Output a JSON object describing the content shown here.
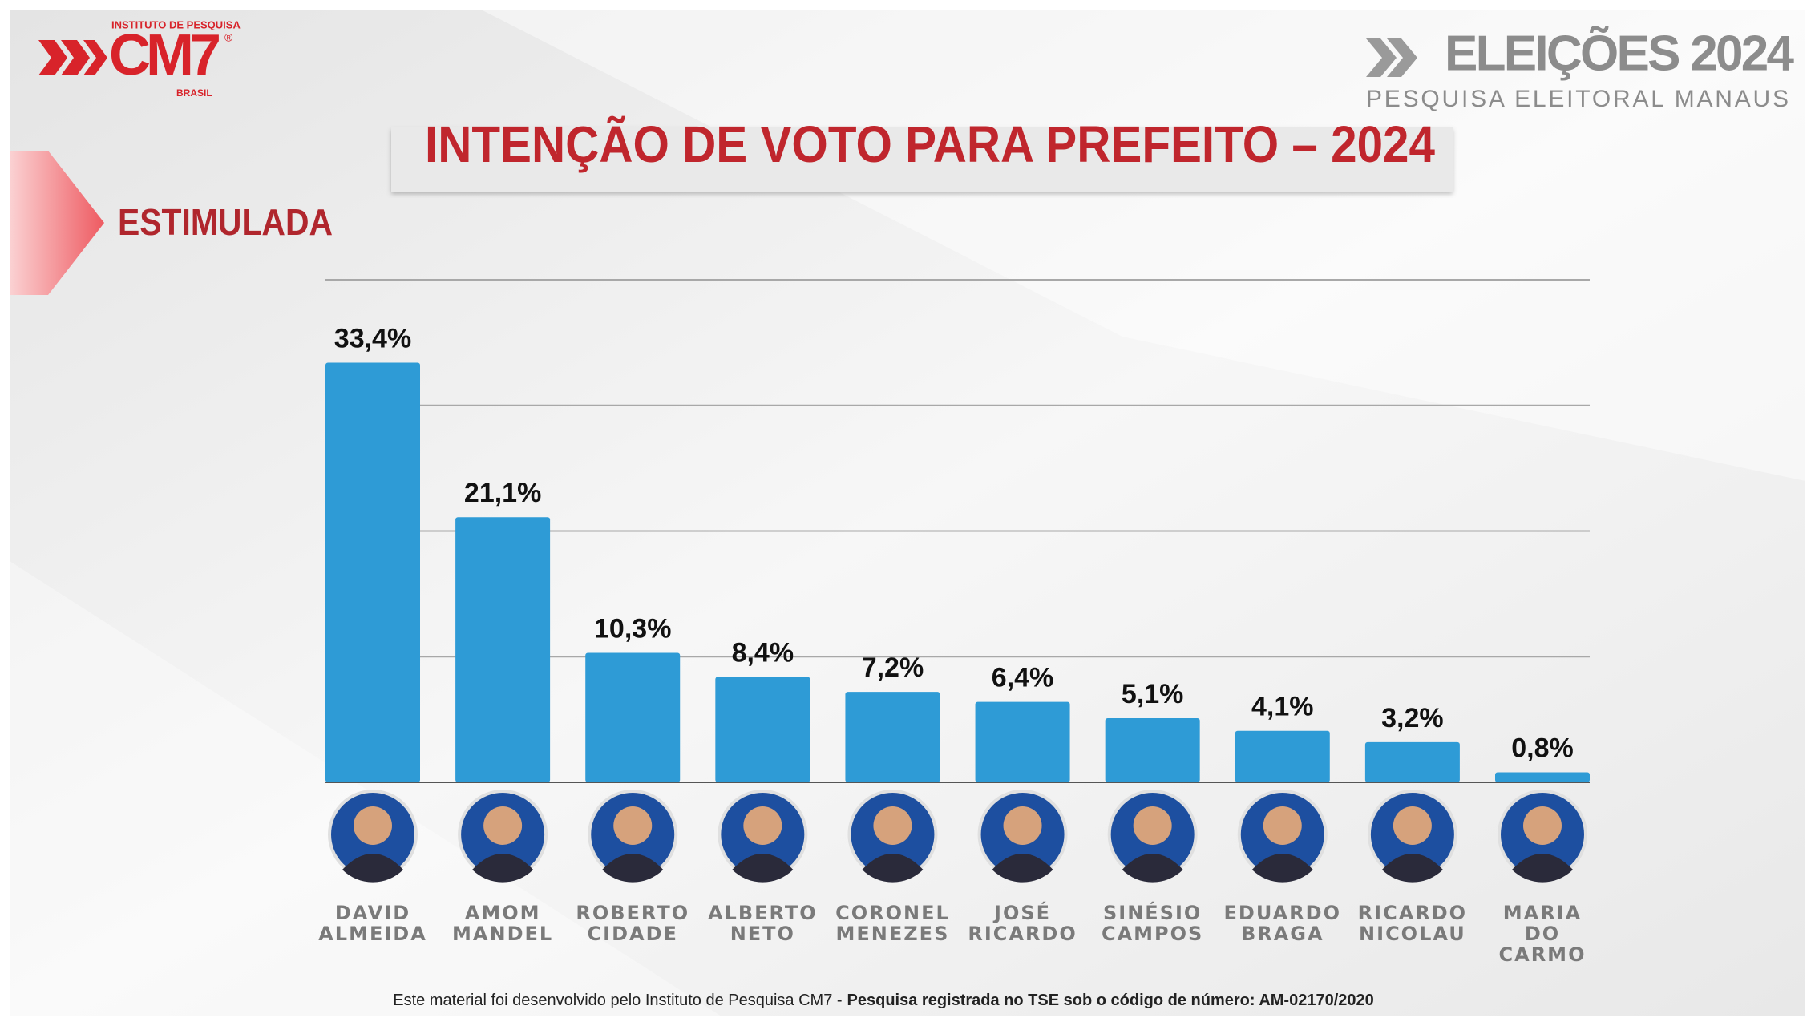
{
  "page": {
    "logo": {
      "top": "INSTITUTO DE PESQUISA",
      "brand": "CM7",
      "mark": "®",
      "bottom": "BRASIL"
    },
    "event": {
      "title": "ELEIÇÕES 2024",
      "subtitle": "PESQUISA ELEITORAL MANAUS"
    },
    "footer": {
      "text": "Este material foi desenvolvido pelo Instituto de Pesquisa CM7 -",
      "bold": "Pesquisa registrada no TSE sob o código de número: AM-02170/2020"
    }
  },
  "chart_data": {
    "type": "bar",
    "title": "INTENÇÃO DE VOTO PARA PREFEITO – 2024",
    "subtitle": "ESTIMULADA",
    "categories": [
      "DAVID ALMEIDA",
      "AMOM MANDEL",
      "ROBERTO CIDADE",
      "ALBERTO NETO",
      "CORONEL MENEZES",
      "JOSÉ RICARDO",
      "SINÉSIO CAMPOS",
      "EDUARDO BRAGA",
      "RICARDO NICOLAU",
      "MARIA DO CARMO"
    ],
    "values": [
      33.4,
      21.1,
      10.3,
      8.4,
      7.2,
      6.4,
      5.1,
      4.1,
      3.2,
      0.8
    ],
    "value_labels": [
      "33,4%",
      "21,1%",
      "10,3%",
      "8,4%",
      "7,2%",
      "6,4%",
      "5,1%",
      "4,1%",
      "3,2%",
      "0,8%"
    ],
    "color": "#2e9bd6",
    "ylim": [
      0,
      40
    ],
    "yticks": [
      0,
      10,
      20,
      30,
      40
    ],
    "grid": true,
    "show_ytick_labels": false
  }
}
